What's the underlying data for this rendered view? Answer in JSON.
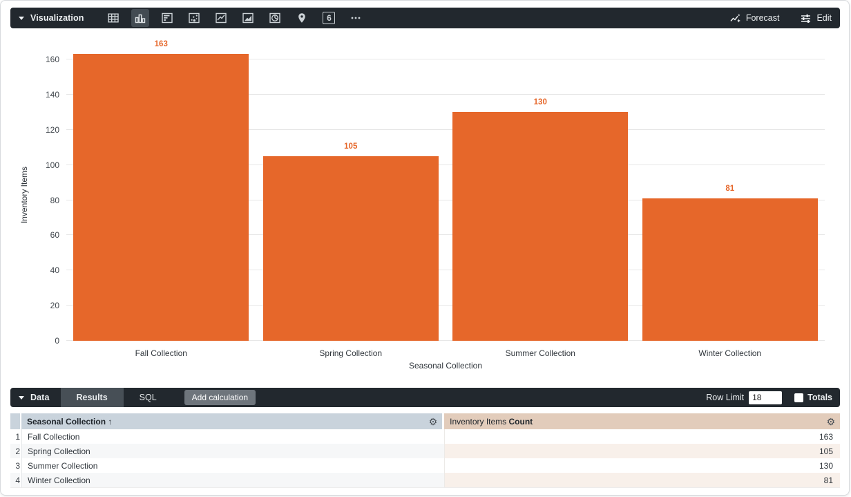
{
  "viz_toolbar": {
    "title": "Visualization",
    "icons": [
      {
        "name": "table",
        "selected": false
      },
      {
        "name": "column-chart",
        "selected": true
      },
      {
        "name": "bar-chart",
        "selected": false
      },
      {
        "name": "scatter-plot",
        "selected": false
      },
      {
        "name": "line-chart",
        "selected": false
      },
      {
        "name": "area-chart",
        "selected": false
      },
      {
        "name": "pie-chart",
        "selected": false
      },
      {
        "name": "map",
        "selected": false
      },
      {
        "name": "single-value",
        "selected": false,
        "glyph": "6"
      },
      {
        "name": "more-options",
        "selected": false
      }
    ],
    "forecast_label": "Forecast",
    "edit_label": "Edit"
  },
  "chart_data": {
    "type": "bar",
    "categories": [
      "Fall Collection",
      "Spring Collection",
      "Summer Collection",
      "Winter Collection"
    ],
    "values": [
      163,
      105,
      130,
      81
    ],
    "value_labels": [
      "163",
      "105",
      "130",
      "81"
    ],
    "title": "",
    "xlabel": "Seasonal Collection",
    "ylabel": "Inventory Items",
    "ylim": [
      0,
      160
    ],
    "ytick_step": 20,
    "grid": true,
    "legend": "none",
    "bar_color": "#E6672A",
    "value_label_color": "#E6672A"
  },
  "data_panel": {
    "title": "Data",
    "tabs": [
      {
        "label": "Results",
        "selected": true
      },
      {
        "label": "SQL",
        "selected": false
      }
    ],
    "add_calculation_label": "Add calculation",
    "row_limit_label": "Row Limit",
    "row_limit_value": "18",
    "totals_label": "Totals",
    "totals_checked": false
  },
  "table": {
    "dimension_header": {
      "label": "Seasonal Collection",
      "sort_indicator": "↑"
    },
    "measure_header": {
      "label": "Inventory Items",
      "sub_label": "Count"
    },
    "rows": [
      {
        "num": "1",
        "dimension": "Fall Collection",
        "measure": "163"
      },
      {
        "num": "2",
        "dimension": "Spring Collection",
        "measure": "105"
      },
      {
        "num": "3",
        "dimension": "Summer Collection",
        "measure": "130"
      },
      {
        "num": "4",
        "dimension": "Winter Collection",
        "measure": "81"
      }
    ]
  },
  "icons": {
    "gear_glyph": "⚙"
  },
  "colors": {
    "accent_orange": "#E6672A",
    "toolbar_bg": "#22282E",
    "dimension_header_bg": "#C9D3DC",
    "measure_header_bg": "#E2CCBB",
    "row_alt_dimension_bg": "#F6F7F8",
    "row_alt_measure_bg": "#F8F0EA"
  }
}
